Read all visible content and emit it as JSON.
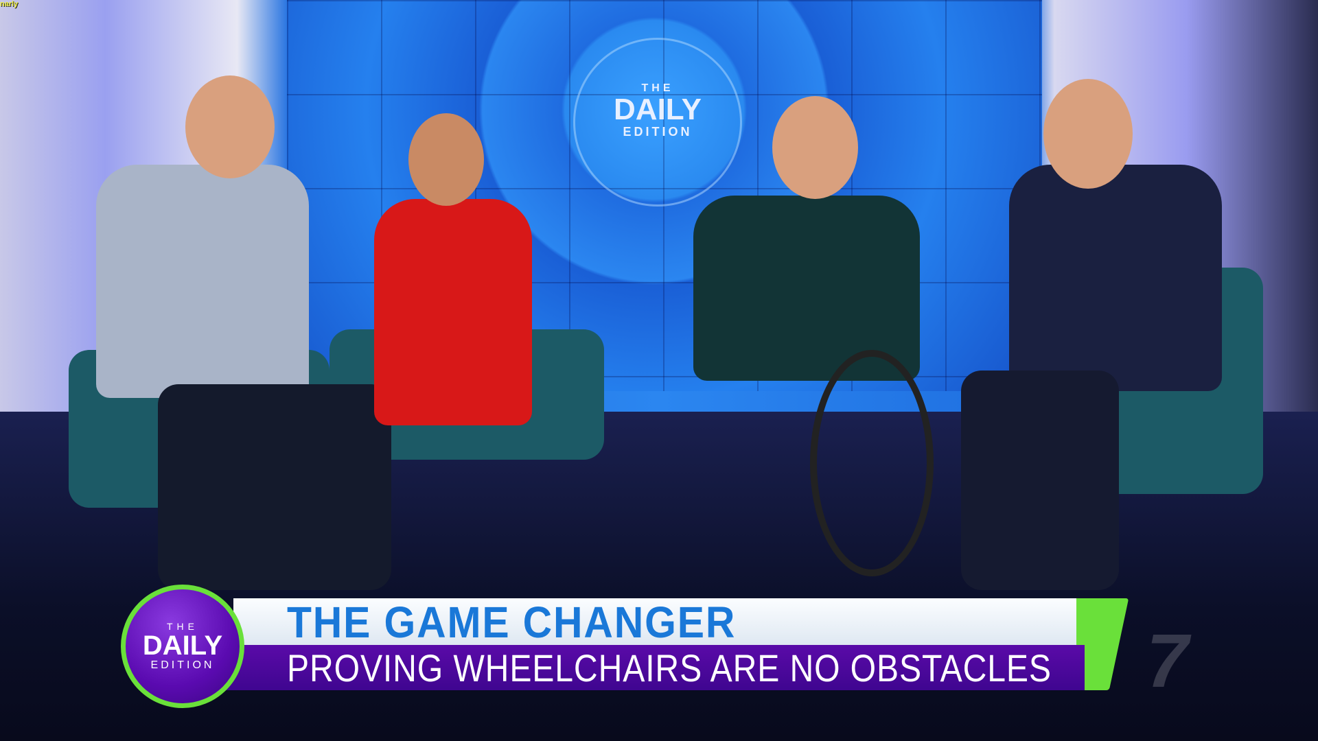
{
  "watermark": "narly",
  "backdrop_logo": {
    "the": "THE",
    "daily": "DAILY",
    "edition": "EDITION"
  },
  "lower_third": {
    "logo": {
      "the": "THE",
      "daily": "DAILY",
      "edition": "EDITION"
    },
    "headline": "THE GAME CHANGER",
    "subline": "PROVING WHEELCHAIRS ARE NO OBSTACLES",
    "colors": {
      "headline": "#1a78d8",
      "bar_purple": "#4a08a0",
      "accent_green": "#6ae03a"
    }
  },
  "channel_bug": "7"
}
